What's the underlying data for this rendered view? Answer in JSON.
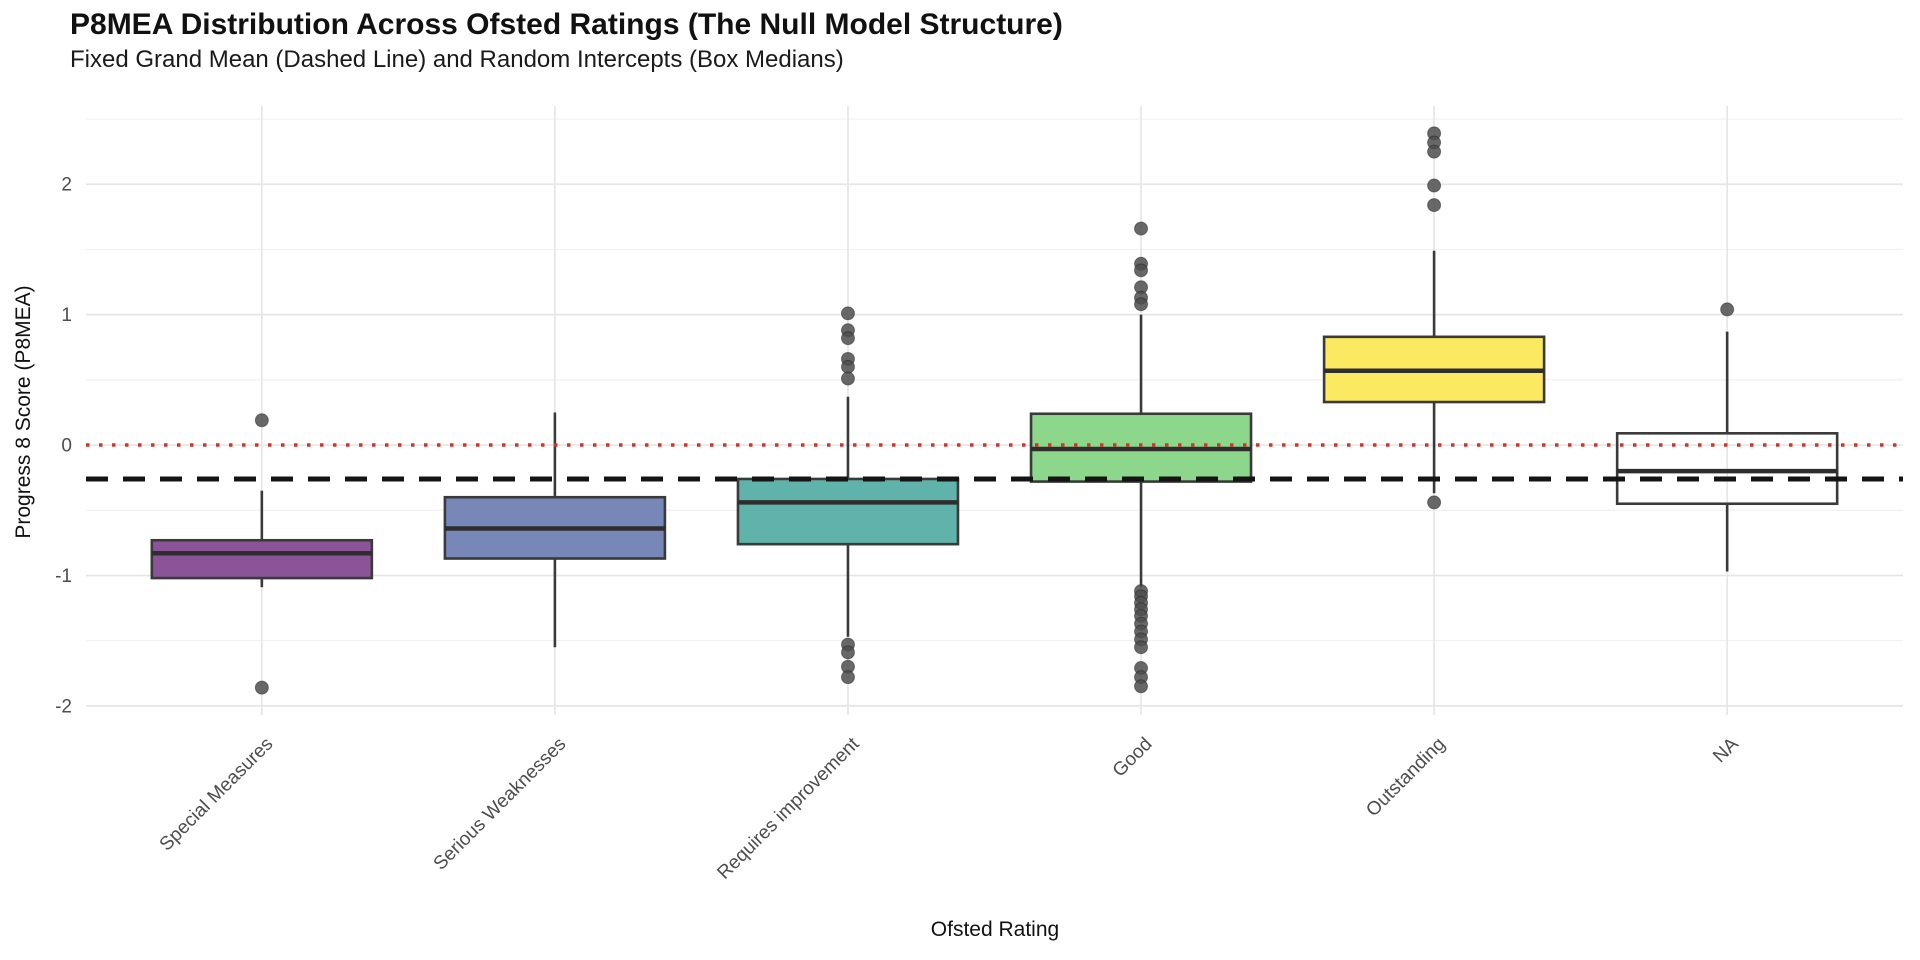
{
  "chart_data": {
    "type": "boxplot",
    "title": "P8MEA Distribution Across Ofsted Ratings (The Null Model Structure)",
    "subtitle": "Fixed Grand Mean (Dashed Line) and Random Intercepts (Box Medians)",
    "xlabel": "Ofsted Rating",
    "ylabel": "Progress 8 Score (P8MEA)",
    "categories": [
      "Special Measures",
      "Serious Weaknesses",
      "Requires improvement",
      "Good",
      "Outstanding",
      "NA"
    ],
    "y_ticks": [
      -2,
      -1,
      0,
      1,
      2
    ],
    "y_tick_labels": [
      "-2",
      "-1",
      "0",
      "1",
      "2"
    ],
    "y_minor_ticks": [
      -1.5,
      -0.5,
      0.5,
      1.5,
      2.5
    ],
    "ylim": [
      -2.07,
      2.6
    ],
    "x_label_rotation_deg": 45,
    "legend": "none",
    "grid": true,
    "boxes": [
      {
        "category": "Special Measures",
        "fill": "#8B5499",
        "whisker_low": -1.09,
        "q1": -1.02,
        "median": -0.83,
        "q3": -0.73,
        "whisker_high": -0.35,
        "outliers": [
          0.19,
          -1.86
        ]
      },
      {
        "category": "Serious Weaknesses",
        "fill": "#7687B8",
        "whisker_low": -1.55,
        "q1": -0.87,
        "median": -0.64,
        "q3": -0.4,
        "whisker_high": 0.25,
        "outliers": []
      },
      {
        "category": "Requires improvement",
        "fill": "#5FB3AA",
        "whisker_low": -1.47,
        "q1": -0.76,
        "median": -0.44,
        "q3": -0.26,
        "whisker_high": 0.37,
        "outliers": [
          1.01,
          0.88,
          0.82,
          0.66,
          0.6,
          0.51,
          -1.53,
          -1.59,
          -1.7,
          -1.78
        ]
      },
      {
        "category": "Good",
        "fill": "#8CD78C",
        "whisker_low": -1.09,
        "q1": -0.28,
        "median": -0.03,
        "q3": 0.24,
        "whisker_high": 1.0,
        "outliers": [
          1.66,
          1.39,
          1.34,
          1.21,
          1.13,
          1.08,
          -1.12,
          -1.16,
          -1.21,
          -1.26,
          -1.31,
          -1.37,
          -1.43,
          -1.49,
          -1.55,
          -1.71,
          -1.78,
          -1.85
        ]
      },
      {
        "category": "Outstanding",
        "fill": "#FBEA61",
        "whisker_low": -0.37,
        "q1": 0.33,
        "median": 0.57,
        "q3": 0.83,
        "whisker_high": 1.49,
        "outliers": [
          2.39,
          2.32,
          2.25,
          1.99,
          1.84,
          -0.44
        ]
      },
      {
        "category": "NA",
        "fill": "none",
        "whisker_low": -0.97,
        "q1": -0.45,
        "median": -0.2,
        "q3": 0.09,
        "whisker_high": 0.87,
        "outliers": [
          1.04
        ]
      }
    ],
    "reference_lines": [
      {
        "name": "zero-line",
        "value": 0,
        "style": "dotted",
        "color": "#D0342C"
      },
      {
        "name": "fixed-grand-mean",
        "value": -0.26,
        "style": "dashed",
        "color": "#141414"
      }
    ],
    "colors": {
      "box_edge": "#3A3A3A",
      "median_line": "#2E2E2E",
      "outlier_point": "#4D4D4D",
      "grid_major": "#E6E6E6",
      "grid_minor": "#F1F1F1",
      "tick_text": "#4D4D4D",
      "background": "#FFFFFF"
    }
  }
}
